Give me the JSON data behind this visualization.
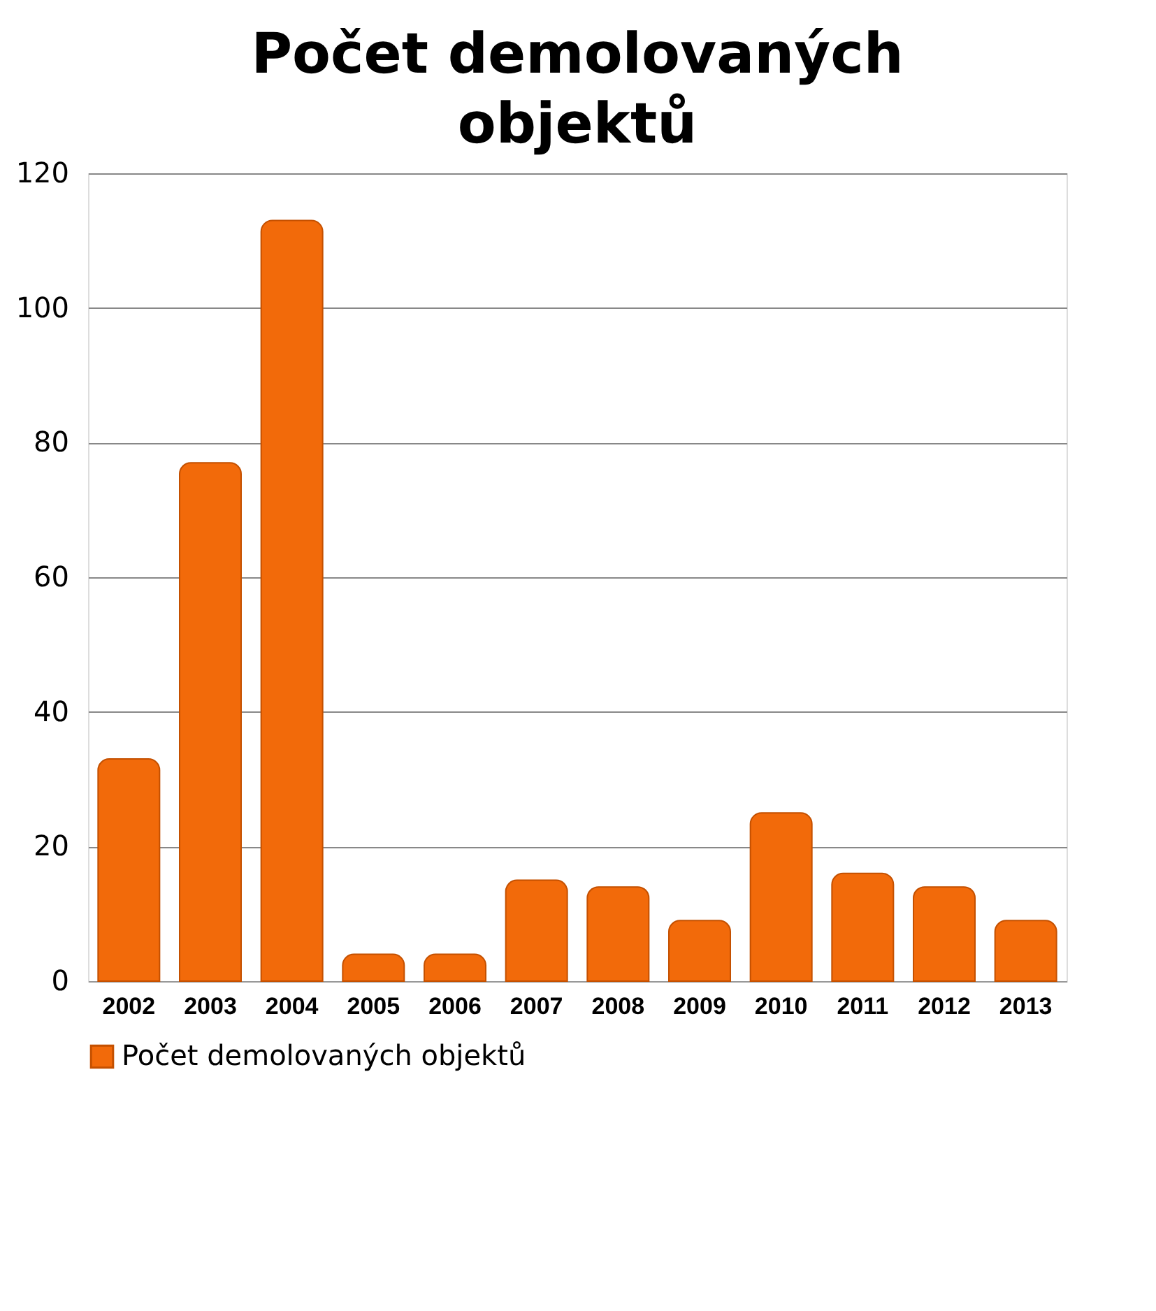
{
  "chart_data": {
    "type": "bar",
    "title": "Počet demolovaných objektů",
    "categories": [
      "2002",
      "2003",
      "2004",
      "2005",
      "2006",
      "2007",
      "2008",
      "2009",
      "2010",
      "2011",
      "2012",
      "2013"
    ],
    "series": [
      {
        "name": "Počet demolovaných objektů",
        "color": "#f26a0a",
        "values": [
          33,
          77,
          113,
          4,
          4,
          15,
          14,
          9,
          25,
          16,
          14,
          9
        ]
      }
    ],
    "ylim": [
      0,
      120
    ],
    "yticks": [
      0,
      20,
      40,
      60,
      80,
      100,
      120
    ],
    "grid": "y",
    "legend": "bottom"
  }
}
